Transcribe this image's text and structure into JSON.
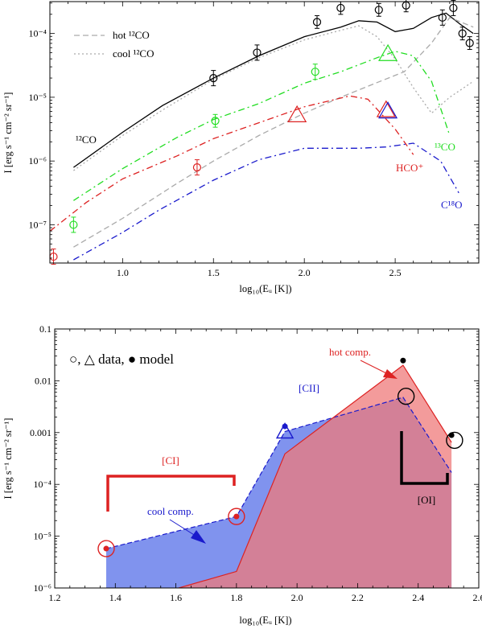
{
  "chart_data": [
    {
      "type": "line",
      "xlabel": "log₁₀(Eᵤ [K])",
      "ylabel": "I [erg s⁻¹ cm⁻² sr⁻¹]",
      "xlim": [
        0.6,
        2.96
      ],
      "ylim_log10": [
        -7.6,
        -3.5
      ],
      "yscale": "log",
      "xticks": [
        "1.0",
        "1.5",
        "2.0",
        "2.5"
      ],
      "xtick_values": [
        1.0,
        1.5,
        2.0,
        2.5
      ],
      "yticks": [
        "10⁻⁷",
        "10⁻⁶",
        "10⁻⁵",
        "10⁻⁴"
      ],
      "ytick_values": [
        -7,
        -6,
        -5,
        -4
      ],
      "legend_position": "top-left",
      "legend": [
        {
          "label": "hot ¹²CO",
          "color": "#aaaaaa",
          "style": "dashed"
        },
        {
          "label": "cool ¹²CO",
          "color": "#aaaaaa",
          "style": "dotted"
        }
      ],
      "annotations": [
        {
          "text": "¹²CO",
          "color": "#000000"
        },
        {
          "text": "¹³CO",
          "color": "#22dd22"
        },
        {
          "text": "HCO⁺",
          "color": "#dd2222"
        },
        {
          "text": "C¹⁸O",
          "color": "#1a1acc"
        }
      ],
      "series": [
        {
          "name": "¹²CO",
          "color": "#000000",
          "style": "solid",
          "x": [
            0.73,
            1.0,
            1.22,
            1.5,
            1.75,
            2.0,
            2.2,
            2.3,
            2.4,
            2.5,
            2.6,
            2.7,
            2.78,
            2.86,
            2.93
          ],
          "y": [
            -6.1,
            -5.55,
            -5.13,
            -4.7,
            -4.35,
            -4.05,
            -3.9,
            -3.8,
            -3.82,
            -3.97,
            -3.92,
            -3.75,
            -3.68,
            -3.86,
            -4.0
          ]
        },
        {
          "name": "hot ¹²CO",
          "color": "#aaaaaa",
          "style": "dashed",
          "x": [
            0.73,
            1.0,
            1.3,
            1.5,
            1.75,
            2.0,
            2.2,
            2.4,
            2.55,
            2.7,
            2.8,
            2.93
          ],
          "y": [
            -7.35,
            -6.9,
            -6.35,
            -6.0,
            -5.6,
            -5.25,
            -5.0,
            -4.77,
            -4.6,
            -4.15,
            -3.75,
            -3.9
          ]
        },
        {
          "name": "cool ¹²CO",
          "color": "#aaaaaa",
          "style": "dotted",
          "x": [
            0.73,
            1.0,
            1.22,
            1.5,
            1.75,
            2.0,
            2.2,
            2.3,
            2.4,
            2.5,
            2.6,
            2.7,
            2.8,
            2.93
          ],
          "y": [
            -6.15,
            -5.6,
            -5.2,
            -4.72,
            -4.38,
            -4.1,
            -3.95,
            -3.88,
            -4.05,
            -4.4,
            -4.85,
            -5.25,
            -5.0,
            -4.75
          ]
        },
        {
          "name": "¹³CO",
          "color": "#22dd22",
          "style": "dashdot",
          "x": [
            0.73,
            1.0,
            1.3,
            1.5,
            1.75,
            2.0,
            2.2,
            2.4,
            2.5,
            2.6,
            2.7,
            2.8
          ],
          "y": [
            -6.62,
            -6.12,
            -5.63,
            -5.35,
            -5.1,
            -4.78,
            -4.6,
            -4.38,
            -4.28,
            -4.35,
            -4.75,
            -5.6
          ]
        },
        {
          "name": "HCO⁺",
          "color": "#dd2222",
          "style": "dashdot",
          "x": [
            0.6,
            0.8,
            1.0,
            1.3,
            1.5,
            1.75,
            2.0,
            2.25,
            2.35,
            2.5,
            2.6
          ],
          "y": [
            -7.1,
            -6.65,
            -6.28,
            -5.92,
            -5.65,
            -5.4,
            -5.15,
            -4.98,
            -5.03,
            -5.5,
            -5.9
          ]
        },
        {
          "name": "C¹⁸O",
          "color": "#1a1acc",
          "style": "dashdot",
          "x": [
            0.73,
            1.0,
            1.2,
            1.5,
            1.75,
            2.0,
            2.3,
            2.45,
            2.6,
            2.75,
            2.85
          ],
          "y": [
            -7.55,
            -7.12,
            -6.77,
            -6.3,
            -5.98,
            -5.8,
            -5.8,
            -5.78,
            -5.72,
            -6.0,
            -6.5
          ]
        }
      ],
      "data_points": [
        {
          "name": "¹²CO data",
          "color": "#000000",
          "marker": "circle",
          "x": [
            1.5,
            1.74,
            2.07,
            2.2,
            2.41,
            2.56,
            2.76,
            2.82,
            2.87,
            2.91
          ],
          "y": [
            -4.7,
            -4.3,
            -3.82,
            -3.6,
            -3.63,
            -3.56,
            -3.75,
            -3.6,
            -4.0,
            -4.15
          ],
          "err": [
            0.12,
            0.12,
            0.1,
            0.1,
            0.1,
            0.1,
            0.12,
            0.12,
            0.1,
            0.1
          ]
        },
        {
          "name": "¹³CO data",
          "color": "#22dd22",
          "marker": "circle",
          "x": [
            0.73,
            1.51,
            2.06
          ],
          "y": [
            -7.0,
            -5.37,
            -4.6
          ],
          "err": [
            0.12,
            0.1,
            0.12
          ]
        },
        {
          "name": "¹³CO data",
          "color": "#22dd22",
          "marker": "triangle",
          "x": [
            2.46
          ],
          "y": [
            -4.32
          ],
          "err": [
            0
          ]
        },
        {
          "name": "HCO⁺ data",
          "color": "#dd2222",
          "marker": "circle",
          "x": [
            0.62,
            1.41
          ],
          "y": [
            -7.5,
            -6.1
          ],
          "err": [
            0.12,
            0.12
          ]
        },
        {
          "name": "HCO⁺ data",
          "color": "#dd2222",
          "marker": "triangle",
          "x": [
            1.96,
            2.45
          ],
          "y": [
            -5.28,
            -5.2
          ],
          "err": [
            0,
            0
          ]
        },
        {
          "name": "C¹⁸O data",
          "color": "#1a1acc",
          "marker": "triangle",
          "x": [
            2.46
          ],
          "y": [
            -5.22
          ],
          "err": [
            0
          ]
        }
      ]
    },
    {
      "type": "area",
      "xlabel": "log₁₀(Eᵤ [K])",
      "ylabel": "I [erg s⁻¹ cm⁻² sr⁻¹]",
      "xlim": [
        1.2,
        2.6
      ],
      "ylim_log10": [
        -6,
        -1
      ],
      "yscale": "log",
      "xticks": [
        "1.2",
        "1.4",
        "1.6",
        "1.8",
        "2.0",
        "2.2",
        "2.4",
        "2.6"
      ],
      "xtick_values": [
        1.2,
        1.4,
        1.6,
        1.8,
        2.0,
        2.2,
        2.4,
        2.6
      ],
      "yticks": [
        "10⁻⁶",
        "10⁻⁵",
        "10⁻⁴",
        "0.001",
        "0.01",
        "0.1"
      ],
      "ytick_values": [
        -6,
        -5,
        -4,
        -3,
        -2,
        -1
      ],
      "legend_text": "○, △ data, ● model",
      "labels": [
        {
          "text": "[CI]",
          "color": "#dd2222"
        },
        {
          "text": "[CII]",
          "color": "#1a1acc"
        },
        {
          "text": "[OI]",
          "color": "#000000"
        },
        {
          "text": "hot comp.",
          "color": "#dd2222"
        },
        {
          "text": "cool comp.",
          "color": "#1a1acc"
        }
      ],
      "series": [
        {
          "name": "cool comp.",
          "color": "#8093ee",
          "edge": "#1a1acc",
          "x": [
            1.37,
            1.8,
            1.96,
            2.35,
            2.51
          ],
          "y": [
            -5.24,
            -4.62,
            -2.98,
            -2.32,
            -3.77
          ]
        },
        {
          "name": "hot comp.",
          "color": "#ef7a7a",
          "edge": "#dd2222",
          "x": [
            1.37,
            1.8,
            1.96,
            2.35,
            2.51
          ],
          "y": [
            -6.4,
            -5.68,
            -3.41,
            -1.7,
            -3.19
          ]
        }
      ],
      "data_points": [
        {
          "marker": "circle",
          "color": "#dd2222",
          "x": [
            1.37,
            1.8
          ],
          "y": [
            -5.24,
            -4.62
          ]
        },
        {
          "marker": "triangle",
          "color": "#1a1acc",
          "x": [
            1.96
          ],
          "y": [
            -2.98
          ]
        },
        {
          "marker": "circle",
          "color": "#000000",
          "x": [
            2.36,
            2.52
          ],
          "y": [
            -2.3,
            -3.15
          ]
        }
      ],
      "model_points": [
        {
          "color": "#dd2222",
          "x": [
            1.37,
            1.8
          ],
          "y": [
            -5.24,
            -4.62
          ]
        },
        {
          "color": "#1a1acc",
          "x": [
            1.96
          ],
          "y": [
            -2.88
          ]
        },
        {
          "color": "#000000",
          "x": [
            2.35,
            2.51
          ],
          "y": [
            -1.61,
            -3.05
          ]
        }
      ]
    }
  ]
}
